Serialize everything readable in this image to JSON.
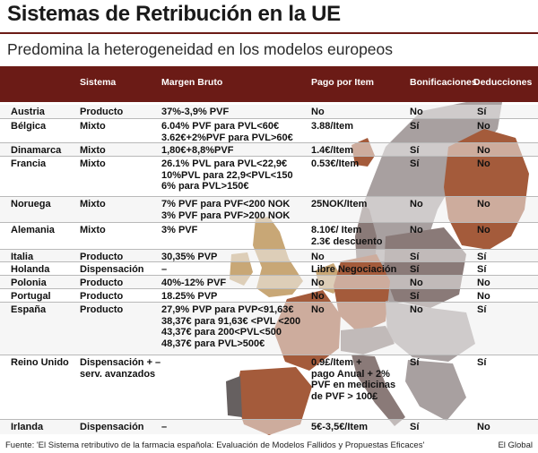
{
  "title": "Sistemas de Retribución en la UE",
  "subtitle": "Predomina la heterogeneidad en los modelos europeos",
  "columns": [
    "Sistema",
    "Margen Bruto",
    "Pago por Item",
    "Bonificaciones",
    "Deducciones"
  ],
  "colors": {
    "header_bg": "#6b1b16",
    "map_light": "#a8a0a0",
    "map_medium": "#8a7a78",
    "map_terracotta": "#a45b3b",
    "map_sand": "#c8a776",
    "map_dark": "#666060"
  },
  "chart_data": {
    "type": "table",
    "columns": [
      "País",
      "Sistema",
      "Margen Bruto",
      "Pago por Item",
      "Bonificaciones",
      "Deducciones"
    ],
    "rows": [
      {
        "country": "Austria",
        "sistema": [
          "Producto"
        ],
        "margen": [
          "37%-3,9% PVF"
        ],
        "pago": [
          "No"
        ],
        "bonif": "No",
        "deduc": "Sí"
      },
      {
        "country": "Bélgica",
        "sistema": [
          "Mixto"
        ],
        "margen": [
          "6.04% PVF para PVL<60€",
          "3.62€+2%PVF para PVL>60€"
        ],
        "pago": [
          "3.88/Item"
        ],
        "bonif": "Sí",
        "deduc": "No"
      },
      {
        "country": "Dinamarca",
        "sistema": [
          "Mixto"
        ],
        "margen": [
          "1,80€+8,8%PVF"
        ],
        "pago": [
          "1.4€/Item"
        ],
        "bonif": "Sí",
        "deduc": "No"
      },
      {
        "country": "Francia",
        "sistema": [
          "Mixto"
        ],
        "margen": [
          "26.1% PVL para PVL<22,9€",
          "10%PVL para 22,9<PVL<150",
          "6% para PVL>150€"
        ],
        "pago": [
          "",
          "0.53€/Item"
        ],
        "bonif": "Sí",
        "deduc": "No"
      },
      {
        "country": "Noruega",
        "sistema": [
          "Mixto"
        ],
        "margen": [
          "7% PVF para PVF<200 NOK",
          "3% PVF para PVF>200 NOK"
        ],
        "pago": [
          "25NOK/Item"
        ],
        "bonif": "No",
        "deduc": "No"
      },
      {
        "country": "Alemania",
        "sistema": [
          "Mixto"
        ],
        "margen": [
          "3% PVF"
        ],
        "pago": [
          "8.10€/ Item",
          "2.3€ descuento"
        ],
        "bonif": "No",
        "deduc": "No"
      },
      {
        "country": "Italia",
        "sistema": [
          "Producto"
        ],
        "margen": [
          "30,35% PVP"
        ],
        "pago": [
          "No"
        ],
        "bonif": "Sí",
        "deduc": "Sí"
      },
      {
        "country": "Holanda",
        "sistema": [
          "Dispensación"
        ],
        "margen": [
          "–"
        ],
        "pago": [
          "Libre Negociación"
        ],
        "bonif": "Sí",
        "deduc": "Sí"
      },
      {
        "country": "Polonia",
        "sistema": [
          "Producto"
        ],
        "margen": [
          "40%-12% PVF"
        ],
        "pago": [
          "No"
        ],
        "bonif": "No",
        "deduc": "No"
      },
      {
        "country": "Portugal",
        "sistema": [
          "Producto"
        ],
        "margen": [
          "18.25% PVP"
        ],
        "pago": [
          "No"
        ],
        "bonif": "Sí",
        "deduc": "No"
      },
      {
        "country": "España",
        "sistema": [
          "Producto"
        ],
        "margen": [
          "27,9% PVP para PVP<91,63€",
          "38,37€ para 91,63€ <PVL <200",
          "43,37€ para 200<PVL<500",
          "48,37€ para PVL>500€"
        ],
        "pago": [
          "No"
        ],
        "bonif": "No",
        "deduc": "Sí"
      },
      {
        "country": "Reino Unido",
        "sistema": [
          "Dispensación + –",
          "serv. avanzados"
        ],
        "margen": [
          ""
        ],
        "pago": [
          "",
          "",
          "0.9£/Item +",
          "pago Anual + 2%",
          "PVF en medicinas",
          "de PVF > 100£"
        ],
        "bonif": "Sí",
        "deduc": "Sí"
      },
      {
        "country": "Irlanda",
        "sistema": [
          "Dispensación"
        ],
        "margen": [
          "–"
        ],
        "pago": [
          "5€-3,5€/Item"
        ],
        "bonif": "Sí",
        "deduc": "No"
      }
    ]
  },
  "footer": {
    "source": "Fuente: 'El Sistema retributivo de la farmacia española: Evaluación de Modelos Fallidos y Propuestas Eficaces'",
    "credit": "El Global"
  }
}
